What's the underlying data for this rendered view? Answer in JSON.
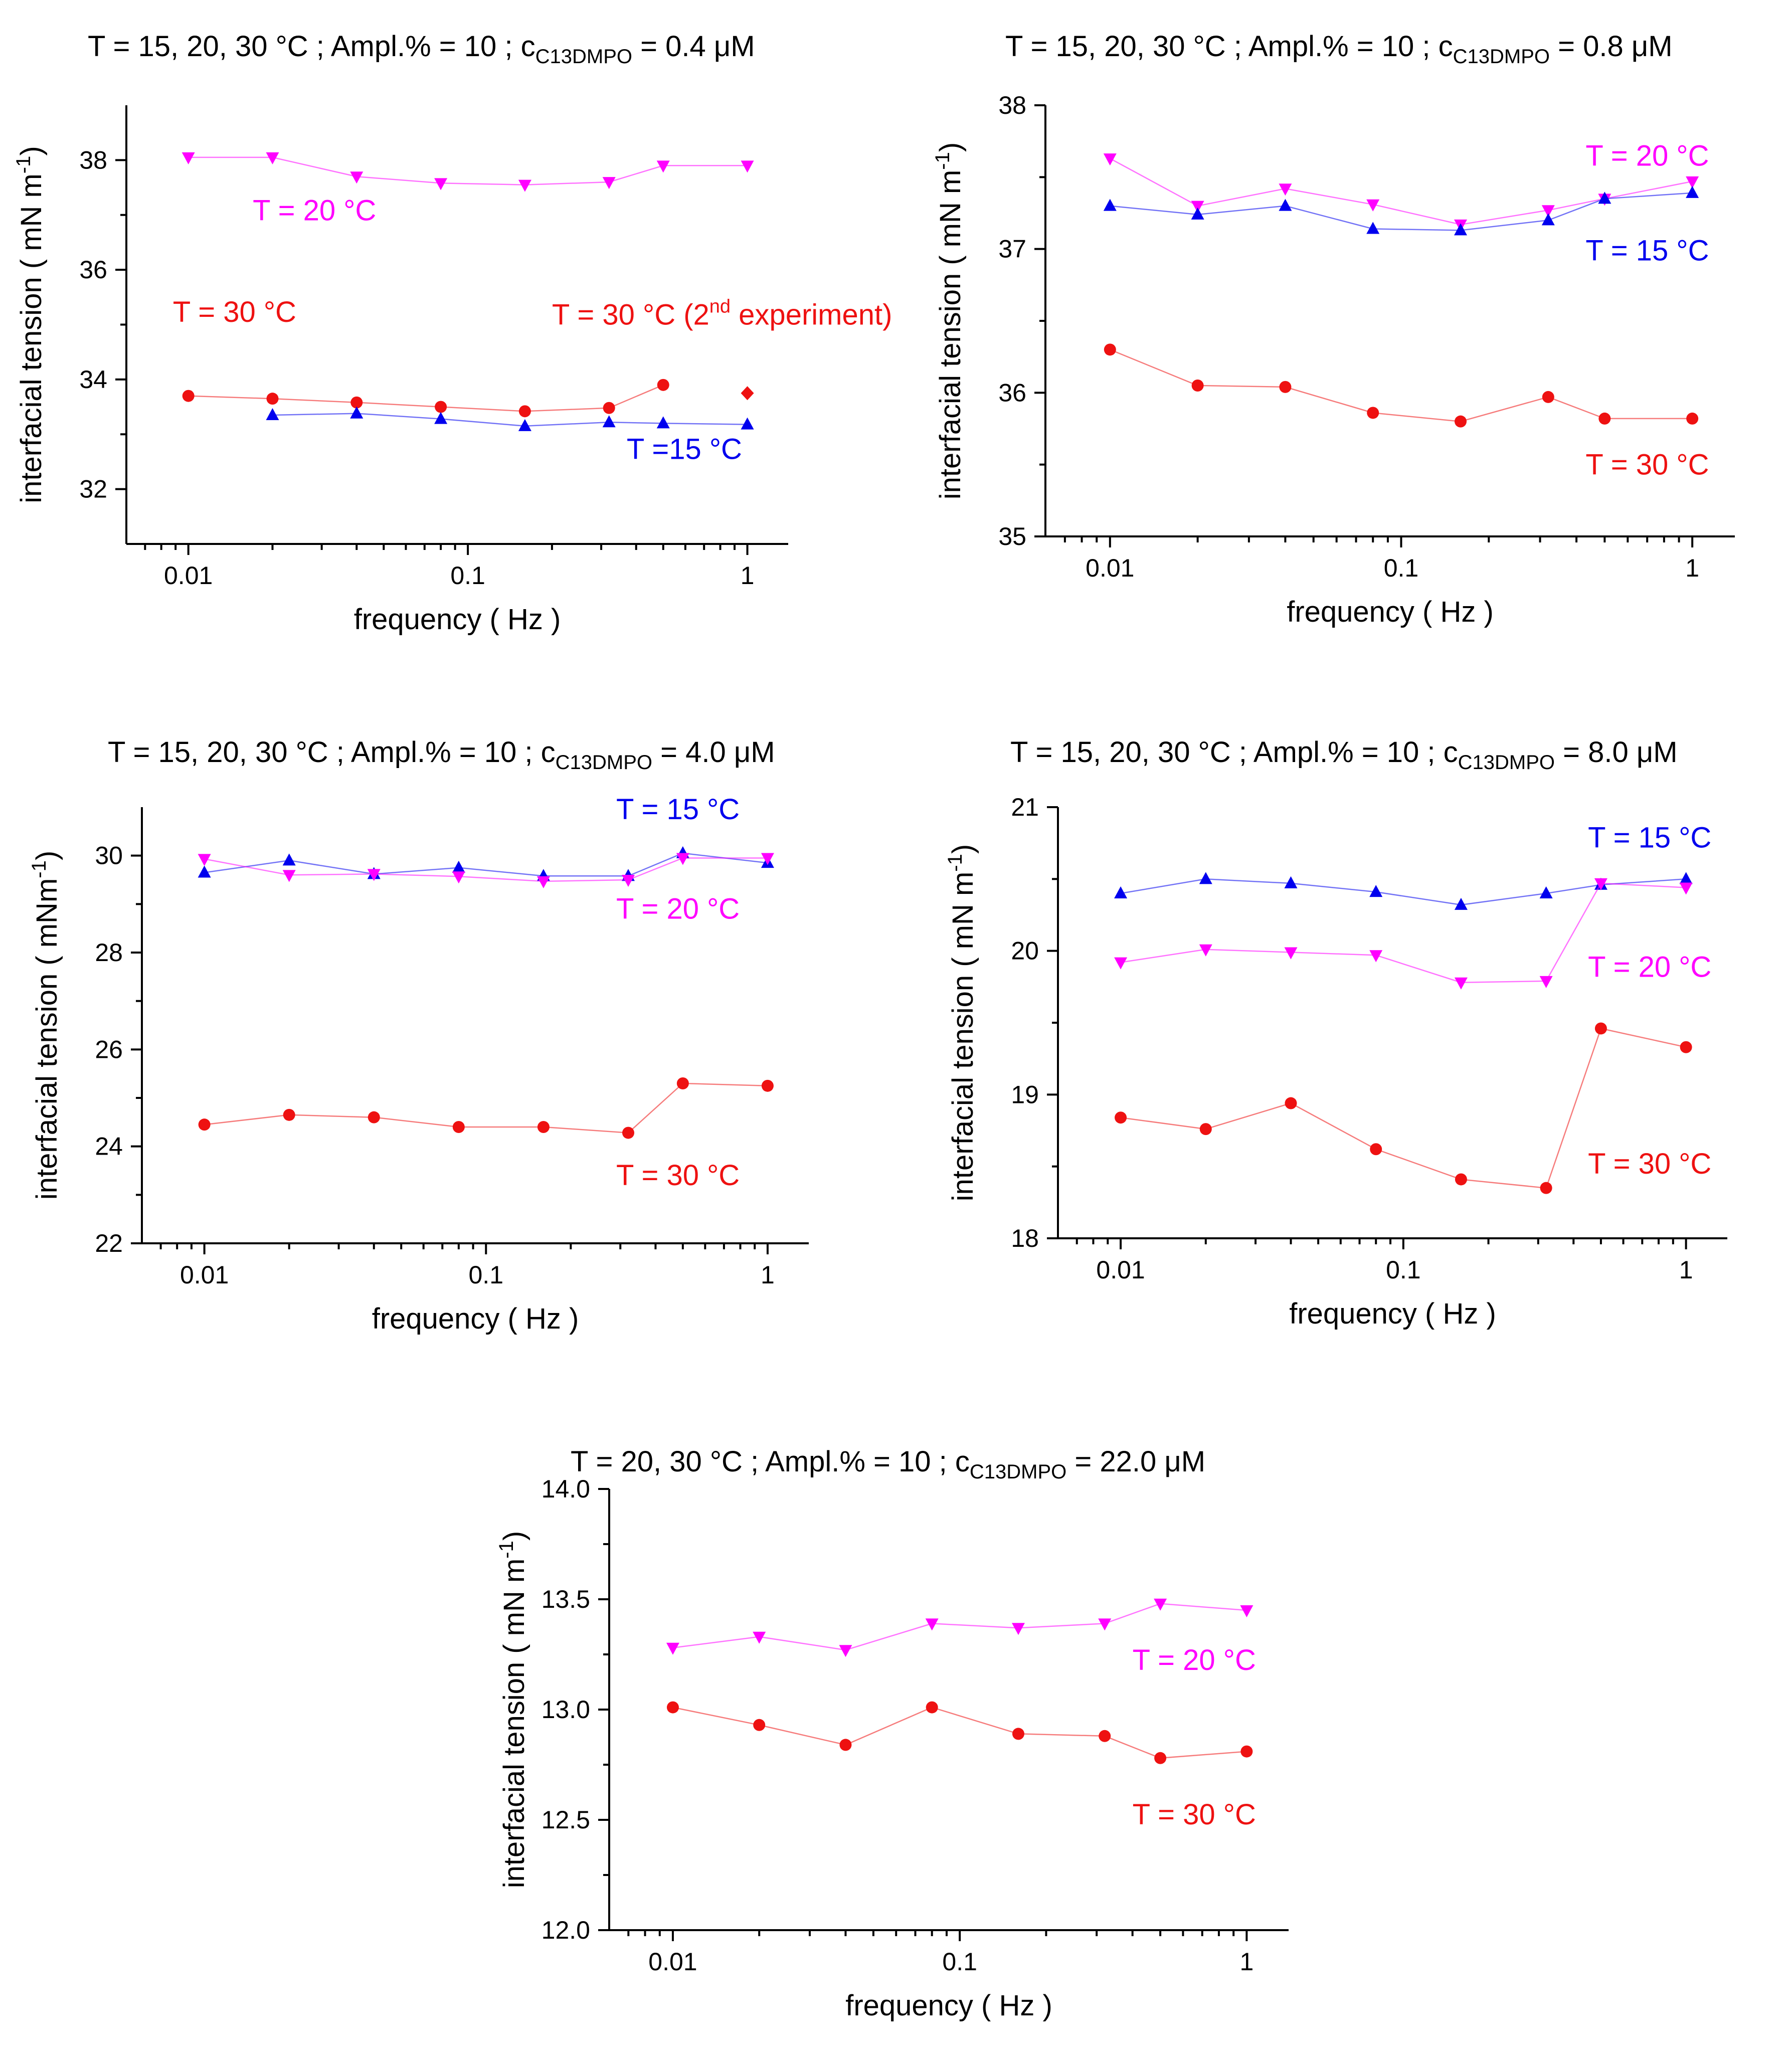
{
  "colors": {
    "blue": "#0000ee",
    "magenta": "#ff00ff",
    "red": "#ee1111"
  },
  "chart_data": [
    {
      "type": "line",
      "title": {
        "main": "T = 15, 20, 30 °C ;  Ampl.% = 10 ;  c",
        "sub": "C13DMPO",
        "tail": " = 0.4 μM"
      },
      "xlabel": "frequency ( Hz )",
      "ylabel": {
        "main": "interfacial tension ( mN m",
        "sup": "-1",
        "tail": ")"
      },
      "xscale": "log",
      "xlim": [
        0.006,
        1.4
      ],
      "ylim": [
        31,
        39
      ],
      "xticks": [
        {
          "v": 0.01,
          "label": "0.01"
        },
        {
          "v": 0.1,
          "label": "0.1"
        },
        {
          "v": 1,
          "label": "1"
        }
      ],
      "yticks": [
        {
          "v": 32,
          "label": "32"
        },
        {
          "v": 34,
          "label": "34"
        },
        {
          "v": 36,
          "label": "36"
        },
        {
          "v": 38,
          "label": "38"
        }
      ],
      "series": [
        {
          "name": "T = 20 °C",
          "color": "magenta",
          "marker": "tri-down",
          "x": [
            0.01,
            0.02,
            0.04,
            0.08,
            0.16,
            0.32,
            0.5,
            1
          ],
          "y": [
            38.05,
            38.05,
            37.7,
            37.58,
            37.55,
            37.6,
            37.9,
            37.9
          ]
        },
        {
          "name": "T = 30 °C",
          "color": "red",
          "marker": "circle",
          "x": [
            0.01,
            0.02,
            0.04,
            0.08,
            0.16,
            0.32,
            0.5
          ],
          "y": [
            33.7,
            33.65,
            33.58,
            33.5,
            33.42,
            33.48,
            33.9
          ]
        },
        {
          "name": "T = 30 °C (2nd experiment)",
          "color": "red",
          "marker": "diamond",
          "x": [
            1
          ],
          "y": [
            33.75
          ]
        },
        {
          "name": "T =15 °C",
          "color": "blue",
          "marker": "tri-up",
          "x": [
            0.02,
            0.04,
            0.08,
            0.16,
            0.32,
            0.5,
            1
          ],
          "y": [
            33.35,
            33.38,
            33.28,
            33.15,
            33.22,
            33.2,
            33.18
          ]
        }
      ],
      "annotations": [
        {
          "text": "T = 20 °C",
          "color": "magenta",
          "x": 0.017,
          "y": 36.9
        },
        {
          "text": "T = 30 °C",
          "color": "red",
          "x": 0.0088,
          "y": 35.05
        },
        {
          "text": "T = 30 °C (2",
          "sup": "nd",
          "tail": " experiment)",
          "color": "red",
          "x": 0.2,
          "y": 35.0
        },
        {
          "text": "T =15 °C",
          "color": "blue",
          "x": 0.37,
          "y": 32.55
        }
      ]
    },
    {
      "type": "line",
      "title": {
        "main": "T = 15, 20, 30 °C ;     Ampl.% = 10 ;  c",
        "sub": "C13DMPO",
        "tail": " = 0.8 μM"
      },
      "xlabel": "frequency ( Hz )",
      "ylabel": {
        "main": "interfacial tension ( mN m",
        "sup": "-1",
        "tail": ")"
      },
      "xscale": "log",
      "xlim": [
        0.006,
        1.4
      ],
      "ylim": [
        35,
        38
      ],
      "xticks": [
        {
          "v": 0.01,
          "label": "0.01"
        },
        {
          "v": 0.1,
          "label": "0.1"
        },
        {
          "v": 1,
          "label": "1"
        }
      ],
      "yticks": [
        {
          "v": 35,
          "label": "35"
        },
        {
          "v": 36,
          "label": "36"
        },
        {
          "v": 37,
          "label": "37"
        },
        {
          "v": 38,
          "label": "38"
        }
      ],
      "series": [
        {
          "name": "T = 20 °C",
          "color": "magenta",
          "marker": "tri-down",
          "x": [
            0.01,
            0.02,
            0.04,
            0.08,
            0.16,
            0.32,
            0.5,
            1
          ],
          "y": [
            37.63,
            37.3,
            37.42,
            37.31,
            37.17,
            37.27,
            37.35,
            37.47
          ]
        },
        {
          "name": "T = 15 °C",
          "color": "blue",
          "marker": "tri-up",
          "x": [
            0.01,
            0.02,
            0.04,
            0.08,
            0.16,
            0.32,
            0.5,
            1
          ],
          "y": [
            37.3,
            37.24,
            37.3,
            37.14,
            37.13,
            37.2,
            37.35,
            37.39
          ]
        },
        {
          "name": "T = 30 °C",
          "color": "red",
          "marker": "circle",
          "x": [
            0.01,
            0.02,
            0.04,
            0.08,
            0.16,
            0.32,
            0.5,
            1
          ],
          "y": [
            36.3,
            36.05,
            36.04,
            35.86,
            35.8,
            35.97,
            35.82,
            35.82
          ]
        }
      ],
      "annotations": [
        {
          "text": "T = 20 °C",
          "color": "magenta",
          "x": 0.43,
          "y": 37.58
        },
        {
          "text": "T = 15 °C",
          "color": "blue",
          "x": 0.43,
          "y": 36.92
        },
        {
          "text": "T = 30 °C",
          "color": "red",
          "x": 0.43,
          "y": 35.43
        }
      ]
    },
    {
      "type": "line",
      "title": {
        "main": "T = 15, 20, 30 °C ;  Ampl.% = 10 ;  c",
        "sub": "C13DMPO",
        "tail": " = 4.0 μM"
      },
      "xlabel": "frequency ( Hz )",
      "ylabel": {
        "main": "interfacial tension  ( mNm",
        "sup": "-1",
        "tail": ")"
      },
      "xscale": "log",
      "xlim": [
        0.006,
        1.4
      ],
      "ylim": [
        22,
        31
      ],
      "xticks": [
        {
          "v": 0.01,
          "label": "0.01"
        },
        {
          "v": 0.1,
          "label": "0.1"
        },
        {
          "v": 1,
          "label": "1"
        }
      ],
      "yticks": [
        {
          "v": 22,
          "label": "22"
        },
        {
          "v": 24,
          "label": "24"
        },
        {
          "v": 26,
          "label": "26"
        },
        {
          "v": 28,
          "label": "28"
        },
        {
          "v": 30,
          "label": "30"
        }
      ],
      "series": [
        {
          "name": "T = 15 °C",
          "color": "blue",
          "marker": "tri-up",
          "x": [
            0.01,
            0.02,
            0.04,
            0.08,
            0.16,
            0.32,
            0.5,
            1
          ],
          "y": [
            29.65,
            29.9,
            29.62,
            29.75,
            29.58,
            29.58,
            30.05,
            29.85
          ]
        },
        {
          "name": "T = 20 °C",
          "color": "magenta",
          "marker": "tri-down",
          "x": [
            0.01,
            0.02,
            0.04,
            0.08,
            0.16,
            0.32,
            0.5,
            1
          ],
          "y": [
            29.93,
            29.6,
            29.62,
            29.57,
            29.47,
            29.5,
            29.95,
            29.95
          ]
        },
        {
          "name": "T = 30 °C",
          "color": "red",
          "marker": "circle",
          "x": [
            0.01,
            0.02,
            0.04,
            0.08,
            0.16,
            0.32,
            0.5,
            1
          ],
          "y": [
            24.45,
            24.65,
            24.6,
            24.4,
            24.4,
            24.28,
            25.3,
            25.25
          ]
        }
      ],
      "annotations": [
        {
          "text": "T = 15 °C",
          "color": "blue",
          "x": 0.29,
          "y": 30.75
        },
        {
          "text": "T = 20 °C",
          "color": "magenta",
          "x": 0.29,
          "y": 28.7
        },
        {
          "text": "T = 30 °C",
          "color": "red",
          "x": 0.29,
          "y": 23.2
        }
      ]
    },
    {
      "type": "line",
      "title": {
        "main": "T = 15, 20, 30 °C ;  Ampl.% = 10 ;  c",
        "sub": "C13DMPO",
        "tail": " = 8.0 μM"
      },
      "xlabel": "frequency ( Hz )",
      "ylabel": {
        "main": "interfacial tension    ( mN m",
        "sup": "-1",
        "tail": ")"
      },
      "xscale": "log",
      "xlim": [
        0.006,
        1.4
      ],
      "ylim": [
        18,
        21
      ],
      "xticks": [
        {
          "v": 0.01,
          "label": "0.01"
        },
        {
          "v": 0.1,
          "label": "0.1"
        },
        {
          "v": 1,
          "label": "1"
        }
      ],
      "yticks": [
        {
          "v": 18,
          "label": "18"
        },
        {
          "v": 19,
          "label": "19"
        },
        {
          "v": 20,
          "label": "20"
        },
        {
          "v": 21,
          "label": "21"
        }
      ],
      "series": [
        {
          "name": "T = 15 °C",
          "color": "blue",
          "marker": "tri-up",
          "x": [
            0.01,
            0.02,
            0.04,
            0.08,
            0.16,
            0.32,
            0.5,
            1
          ],
          "y": [
            20.4,
            20.5,
            20.47,
            20.41,
            20.32,
            20.4,
            20.46,
            20.5
          ]
        },
        {
          "name": "T = 20 °C",
          "color": "magenta",
          "marker": "tri-down",
          "x": [
            0.01,
            0.02,
            0.04,
            0.08,
            0.16,
            0.32,
            0.5,
            1
          ],
          "y": [
            19.92,
            20.01,
            19.99,
            19.97,
            19.78,
            19.79,
            20.47,
            20.44
          ]
        },
        {
          "name": "T = 30 °C",
          "color": "red",
          "marker": "circle",
          "x": [
            0.01,
            0.02,
            0.04,
            0.08,
            0.16,
            0.32,
            0.5,
            1
          ],
          "y": [
            18.84,
            18.76,
            18.94,
            18.62,
            18.41,
            18.35,
            19.46,
            19.33
          ]
        }
      ],
      "annotations": [
        {
          "text": "T = 15 °C",
          "color": "blue",
          "x": 0.45,
          "y": 20.72
        },
        {
          "text": "T = 20 °C",
          "color": "magenta",
          "x": 0.45,
          "y": 19.82
        },
        {
          "text": "T = 30 °C",
          "color": "red",
          "x": 0.45,
          "y": 18.45
        }
      ]
    },
    {
      "type": "line",
      "title": {
        "main": "T = 20, 30 °C ;     Ampl.% = 10 ;  c",
        "sub": "C13DMPO",
        "tail": " =  22.0 μM"
      },
      "xlabel": "frequency  ( Hz )",
      "ylabel": {
        "main": "interfacial tension ( mN m",
        "sup": "-1",
        "tail": ")"
      },
      "xscale": "log",
      "xlim": [
        0.006,
        1.4
      ],
      "ylim": [
        12.0,
        14.0
      ],
      "xticks": [
        {
          "v": 0.01,
          "label": "0.01"
        },
        {
          "v": 0.1,
          "label": "0.1"
        },
        {
          "v": 1,
          "label": "1"
        }
      ],
      "yticks": [
        {
          "v": 12.0,
          "label": "12.0"
        },
        {
          "v": 12.5,
          "label": "12.5"
        },
        {
          "v": 13.0,
          "label": "13.0"
        },
        {
          "v": 13.5,
          "label": "13.5"
        },
        {
          "v": 14.0,
          "label": "14.0"
        }
      ],
      "series": [
        {
          "name": "T = 20 °C",
          "color": "magenta",
          "marker": "tri-down",
          "x": [
            0.01,
            0.02,
            0.04,
            0.08,
            0.16,
            0.32,
            0.5,
            1
          ],
          "y": [
            13.28,
            13.33,
            13.27,
            13.39,
            13.37,
            13.39,
            13.48,
            13.45
          ]
        },
        {
          "name": "T = 30 °C",
          "color": "red",
          "marker": "circle",
          "x": [
            0.01,
            0.02,
            0.04,
            0.08,
            0.16,
            0.32,
            0.5,
            1
          ],
          "y": [
            13.01,
            12.93,
            12.84,
            13.01,
            12.89,
            12.88,
            12.78,
            12.81
          ]
        }
      ],
      "annotations": [
        {
          "text": "T = 20 °C",
          "color": "magenta",
          "x": 0.4,
          "y": 13.18
        },
        {
          "text": "T = 30 °C",
          "color": "red",
          "x": 0.4,
          "y": 12.48
        }
      ]
    }
  ]
}
